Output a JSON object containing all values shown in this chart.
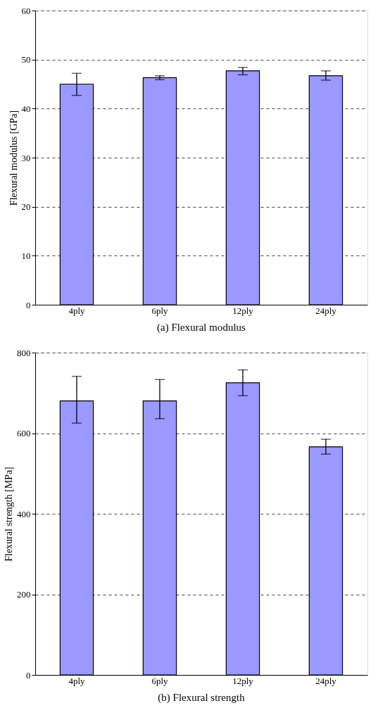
{
  "chart_data": [
    {
      "type": "bar",
      "title": "(a) Flexural modulus",
      "ylabel": "Flexural modulus [GPa]",
      "categories": [
        "4ply",
        "6ply",
        "12ply",
        "24ply"
      ],
      "series": [
        {
          "color": "#9999ff",
          "values": [
            45.0,
            46.3,
            47.7,
            46.7
          ],
          "errors": [
            [
              42.7,
              47.2
            ],
            [
              45.9,
              46.7
            ],
            [
              46.9,
              48.4
            ],
            [
              45.8,
              47.7
            ]
          ]
        }
      ],
      "ylim": [
        0,
        60
      ],
      "yticks": [
        0,
        10,
        20,
        30,
        40,
        50,
        60
      ],
      "grid": "y"
    },
    {
      "type": "bar",
      "title": "(b) Flexural strength",
      "ylabel": "Flexural strength [MPa]",
      "categories": [
        "4ply",
        "6ply",
        "12ply",
        "24ply"
      ],
      "series": [
        {
          "color": "#9999ff",
          "values": [
            680,
            680,
            725,
            566
          ],
          "errors": [
            [
              625,
              741
            ],
            [
              636,
              733
            ],
            [
              693,
              757
            ],
            [
              548,
              585
            ]
          ]
        }
      ],
      "ylim": [
        0,
        800
      ],
      "yticks": [
        0,
        200,
        400,
        600,
        800
      ],
      "grid": "y"
    }
  ]
}
